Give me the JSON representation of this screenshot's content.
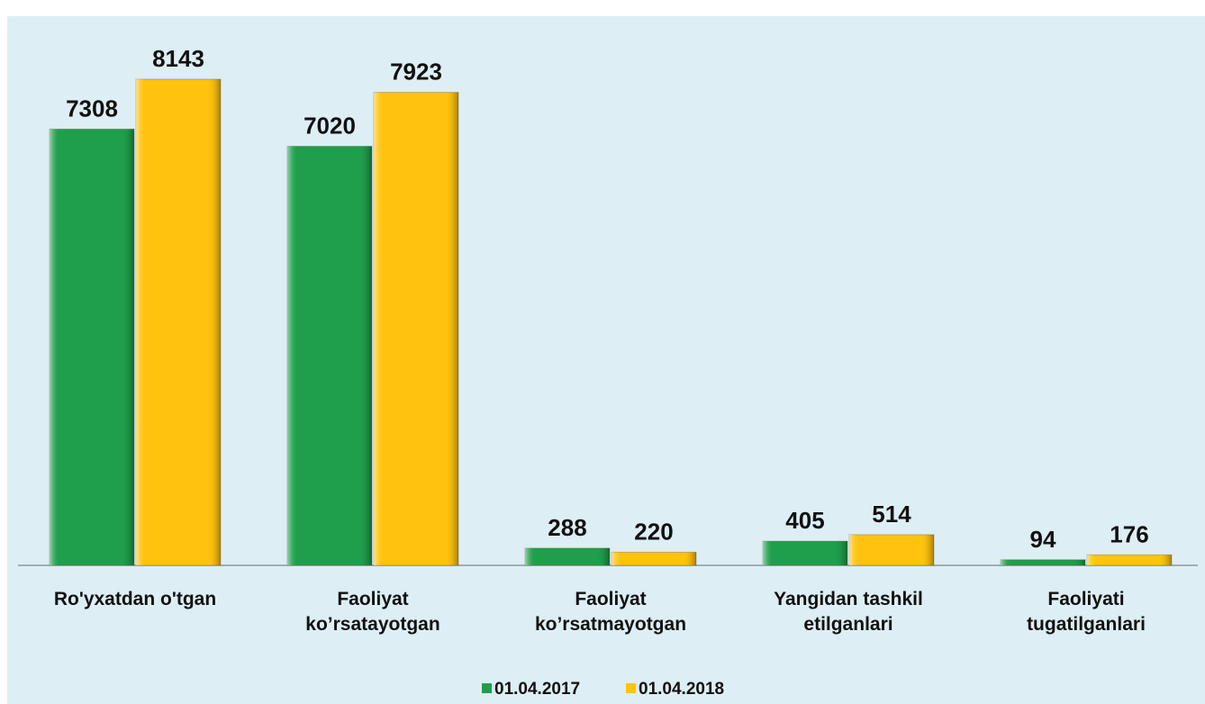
{
  "chart_data": {
    "type": "bar",
    "categories": [
      "Ro'yxatdan o'tgan",
      "Faoliyat\nko’rsatayotgan",
      "Faoliyat\nko’rsatmayotgan",
      "Yangidan tashkil\netilganlari",
      "Faoliyati\ntugatilganlari"
    ],
    "series": [
      {
        "name": "01.04.2017",
        "color": "#1f9e4b",
        "values": [
          7308,
          7020,
          288,
          405,
          94
        ]
      },
      {
        "name": "01.04.2018",
        "color": "#ffc20e",
        "values": [
          8143,
          7923,
          220,
          514,
          176
        ]
      }
    ],
    "legend": "bottom"
  }
}
